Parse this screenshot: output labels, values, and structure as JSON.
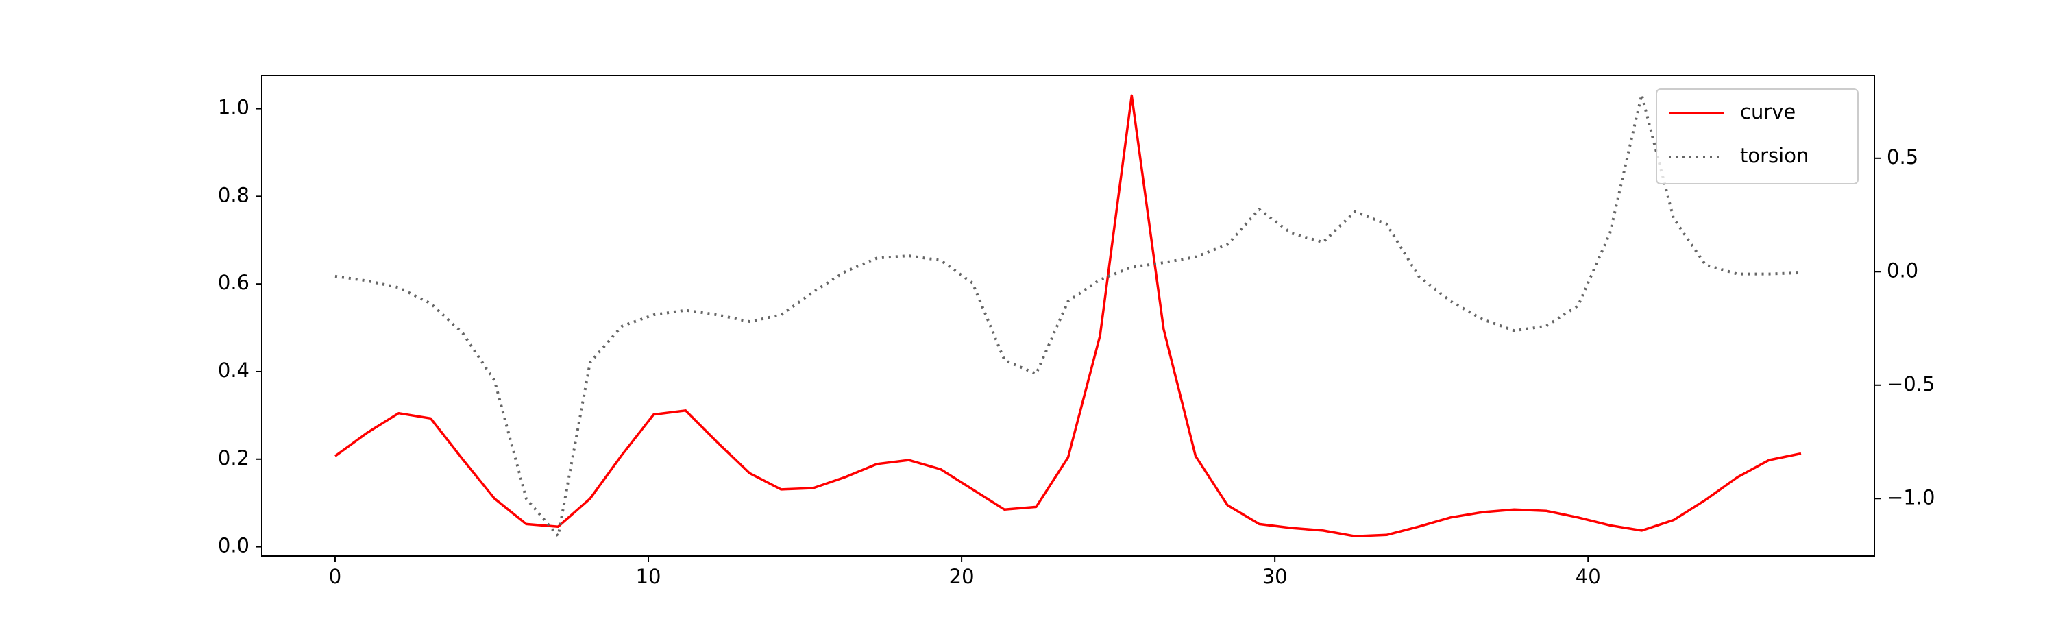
{
  "chart_data": {
    "type": "line",
    "x": [
      0,
      1.02,
      2.03,
      3.05,
      4.07,
      5.09,
      6.1,
      7.12,
      8.14,
      9.16,
      10.17,
      11.19,
      12.21,
      13.23,
      14.24,
      15.26,
      16.28,
      17.3,
      18.31,
      19.33,
      20.35,
      21.37,
      22.38,
      23.4,
      24.42,
      25.43,
      26.45,
      27.47,
      28.49,
      29.5,
      30.52,
      31.54,
      32.56,
      33.57,
      34.59,
      35.61,
      36.63,
      37.64,
      38.66,
      39.68,
      40.7,
      41.71,
      42.73,
      43.75,
      44.77,
      45.78,
      46.8
    ],
    "series": [
      {
        "name": "curve",
        "color": "#ff0000",
        "linestyle": "solid",
        "axis": "y",
        "values": [
          0.207,
          0.26,
          0.305,
          0.293,
          0.2,
          0.11,
          0.052,
          0.046,
          0.11,
          0.21,
          0.302,
          0.311,
          0.238,
          0.168,
          0.131,
          0.134,
          0.159,
          0.189,
          0.198,
          0.177,
          0.131,
          0.085,
          0.091,
          0.204,
          0.482,
          1.03,
          0.497,
          0.207,
          0.095,
          0.052,
          0.043,
          0.037,
          0.024,
          0.027,
          0.046,
          0.067,
          0.079,
          0.085,
          0.082,
          0.067,
          0.049,
          0.037,
          0.061,
          0.107,
          0.159,
          0.198,
          0.213
        ]
      },
      {
        "name": "torsion",
        "color": "#666666",
        "linestyle": "dotted",
        "axis": "y2",
        "values": [
          -0.02,
          -0.04,
          -0.07,
          -0.14,
          -0.27,
          -0.48,
          -1.0,
          -1.165,
          -0.4,
          -0.24,
          -0.19,
          -0.17,
          -0.19,
          -0.22,
          -0.19,
          -0.09,
          0.0,
          0.06,
          0.07,
          0.05,
          -0.05,
          -0.39,
          -0.45,
          -0.13,
          -0.035,
          0.02,
          0.04,
          0.065,
          0.12,
          0.275,
          0.17,
          0.13,
          0.265,
          0.21,
          -0.02,
          -0.13,
          -0.21,
          -0.26,
          -0.24,
          -0.15,
          0.17,
          0.78,
          0.235,
          0.03,
          -0.01,
          -0.01,
          -0.005
        ]
      }
    ],
    "xlim": [
      -2.34,
      49.14
    ],
    "xticks": [
      0,
      10,
      20,
      30,
      40
    ],
    "ylim": [
      -0.021,
      1.076
    ],
    "yticks": [
      {
        "value": 0,
        "label": "0.0"
      },
      0.2,
      0.4,
      0.6,
      0.8,
      {
        "value": 1,
        "label": "1.0"
      }
    ],
    "y2lim": [
      -1.253,
      0.865
    ],
    "y2ticks": [
      {
        "value": -1,
        "label": "−1.0"
      },
      {
        "value": -0.5,
        "label": "−0.5"
      },
      {
        "value": 0,
        "label": "0.0"
      },
      0.5
    ],
    "legend": "upper right"
  }
}
